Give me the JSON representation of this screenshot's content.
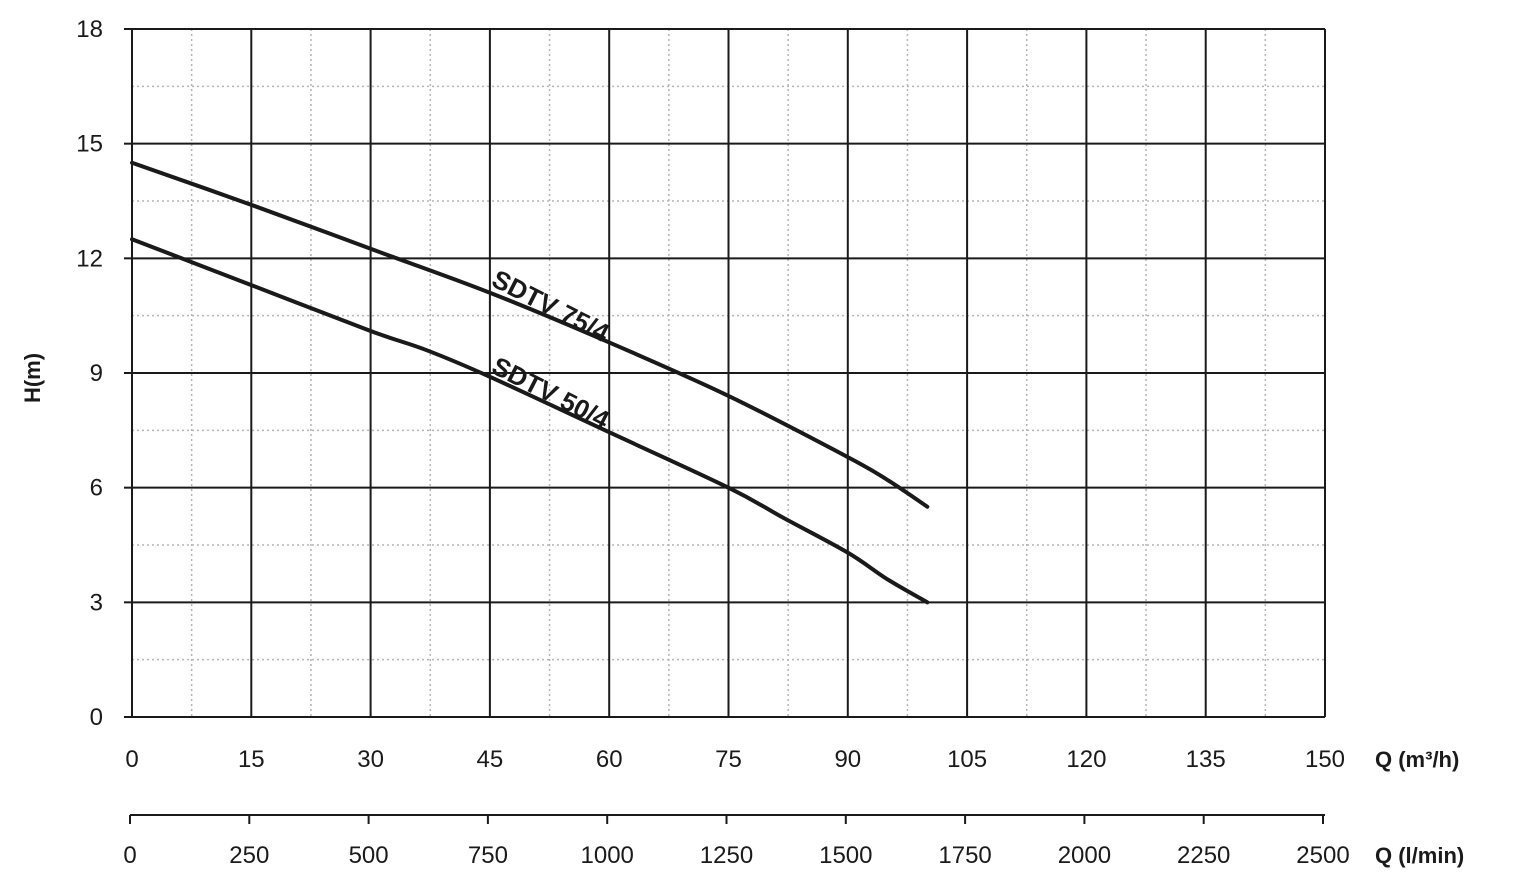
{
  "chart_data": {
    "type": "line",
    "title": "",
    "ylabel": "H(m)",
    "xlabel": "Q (m³/h)",
    "x2label": "Q (l/min)",
    "xlim": [
      0,
      150
    ],
    "ylim": [
      0,
      18
    ],
    "x_ticks": [
      "0",
      "15",
      "30",
      "45",
      "60",
      "75",
      "90",
      "105",
      "120",
      "135",
      "150"
    ],
    "x2_ticks": [
      "0",
      "250",
      "500",
      "750",
      "1000",
      "1250",
      "1500",
      "1750",
      "2000",
      "2250",
      "2500"
    ],
    "y_ticks": [
      "0",
      "3",
      "6",
      "9",
      "12",
      "15",
      "18"
    ],
    "grid": true,
    "line_color": "#1a1a1a",
    "series": [
      {
        "name": "SDTV 75/4",
        "x": [
          0,
          15,
          30,
          45,
          60,
          75,
          90,
          95,
          100
        ],
        "y": [
          14.5,
          13.4,
          12.25,
          11.1,
          9.8,
          8.4,
          6.8,
          6.2,
          5.5
        ]
      },
      {
        "name": "SDTV 50/4",
        "x": [
          0,
          15,
          30,
          37,
          45,
          60,
          75,
          82,
          90,
          95,
          100
        ],
        "y": [
          12.5,
          11.3,
          10.1,
          9.6,
          8.9,
          7.45,
          6.0,
          5.2,
          4.3,
          3.6,
          3.0
        ]
      }
    ]
  }
}
